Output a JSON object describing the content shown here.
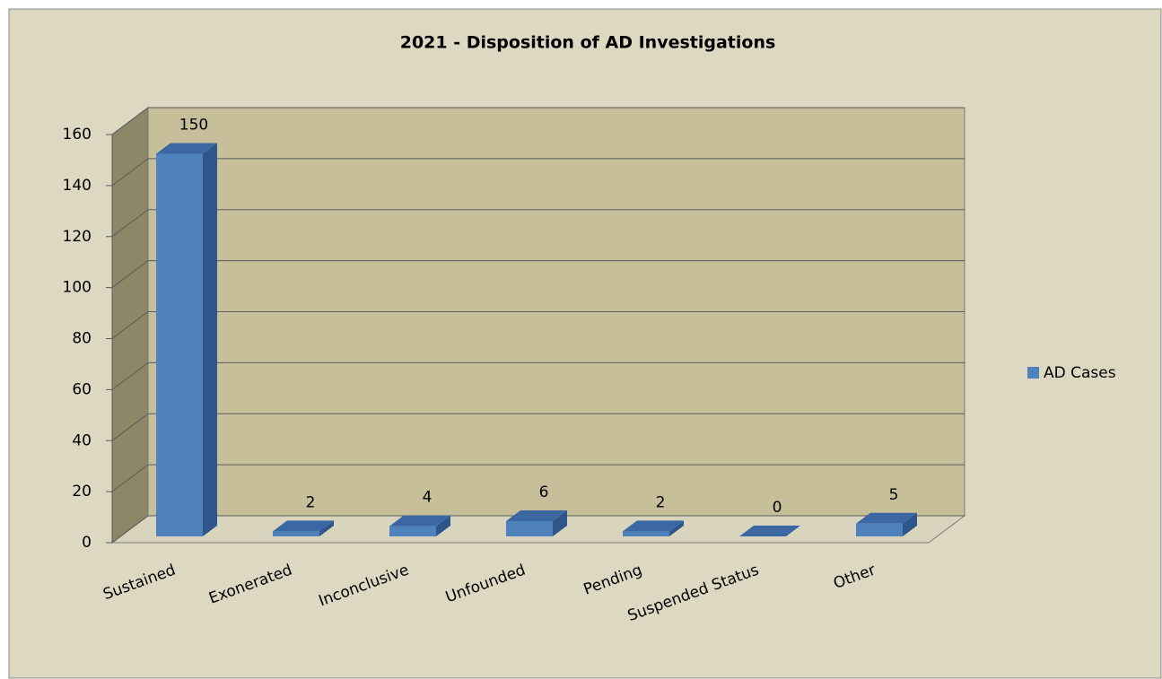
{
  "chart_data": {
    "type": "bar3d",
    "title": "2021 - Disposition of AD Investigations",
    "categories": [
      "Sustained",
      "Exonerated",
      "Inconclusive",
      "Unfounded",
      "Pending",
      "Suspended Status",
      "Other"
    ],
    "series": [
      {
        "name": "AD Cases",
        "color": "#4f81bd",
        "values": [
          150,
          2,
          4,
          6,
          2,
          0,
          5
        ]
      }
    ],
    "ylim": [
      0,
      160
    ],
    "yticks": [
      0,
      20,
      40,
      60,
      80,
      100,
      120,
      140,
      160
    ],
    "grid": true,
    "legend": "right"
  }
}
